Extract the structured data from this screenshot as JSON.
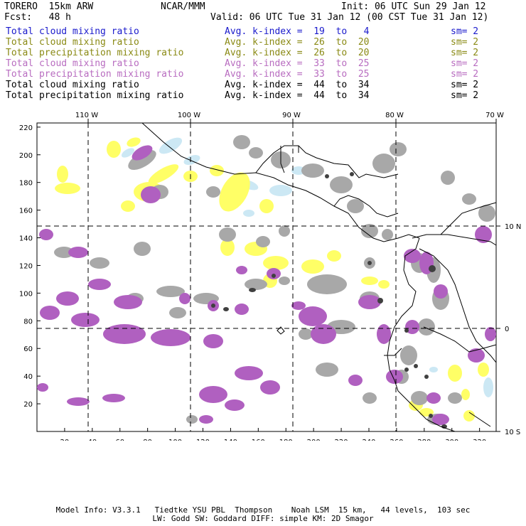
{
  "header": {
    "model_name": "TORERO  15km ARW",
    "center": "NCAR/MMM",
    "init": "Init: 06 UTC Sun 29 Jan 12",
    "fcst": "Fcst:   48 h",
    "valid": "Valid: 06 UTC Tue 31 Jan 12 (00 CST Tue 31 Jan 12)"
  },
  "legend": [
    {
      "field": "Total cloud mixing ratio",
      "kindex": "Avg. k-index =  19  to   4",
      "sm": "sm= 2",
      "color": "#1a1acc"
    },
    {
      "field": "Total cloud mixing ratio",
      "kindex": "Avg. k-index =  26  to  20",
      "sm": "sm= 2",
      "color": "#8a8a14"
    },
    {
      "field": "Total precipitation mixing ratio",
      "kindex": "Avg. k-index =  26  to  20",
      "sm": "sm= 2",
      "color": "#8a8a14"
    },
    {
      "field": "Total cloud mixing ratio",
      "kindex": "Avg. k-index =  33  to  25",
      "sm": "sm= 2",
      "color": "#b86cc0"
    },
    {
      "field": "Total precipitation mixing ratio",
      "kindex": "Avg. k-index =  33  to  25",
      "sm": "sm= 2",
      "color": "#b86cc0"
    },
    {
      "field": "Total cloud mixing ratio",
      "kindex": "Avg. k-index =  44  to  34",
      "sm": "sm= 2",
      "color": "#000000"
    },
    {
      "field": "Total precipitation mixing ratio",
      "kindex": "Avg. k-index =  44  to  34",
      "sm": "sm= 2",
      "color": "#000000"
    }
  ],
  "map": {
    "top_lon_labels": [
      "110 W",
      "100 W",
      "90 W",
      "80 W",
      "70 W"
    ],
    "right_lat_labels": [
      "10 N",
      "0",
      "10 S"
    ],
    "left_grid_labels": [
      "220",
      "200",
      "180",
      "160",
      "140",
      "120",
      "100",
      "80",
      "60",
      "40",
      "20"
    ],
    "bottom_grid_labels": [
      "20",
      "40",
      "60",
      "80",
      "100",
      "120",
      "140",
      "160",
      "180",
      "200",
      "220",
      "240",
      "260",
      "280",
      "300",
      "320"
    ],
    "colors": {
      "yellow": "#ffff66",
      "light_blue": "#cce8f4",
      "purple": "#b060c0",
      "gray": "#a8a8a8",
      "dark": "#404040"
    }
  },
  "footer": {
    "line1": "Model Info: V3.3.1   Tiedtke YSU PBL  Thompson    Noah LSM  15 km,   44 levels,  103 sec",
    "line2": "LW: Godd SW: Goddard DIFF: simple KM: 2D Smagor"
  }
}
